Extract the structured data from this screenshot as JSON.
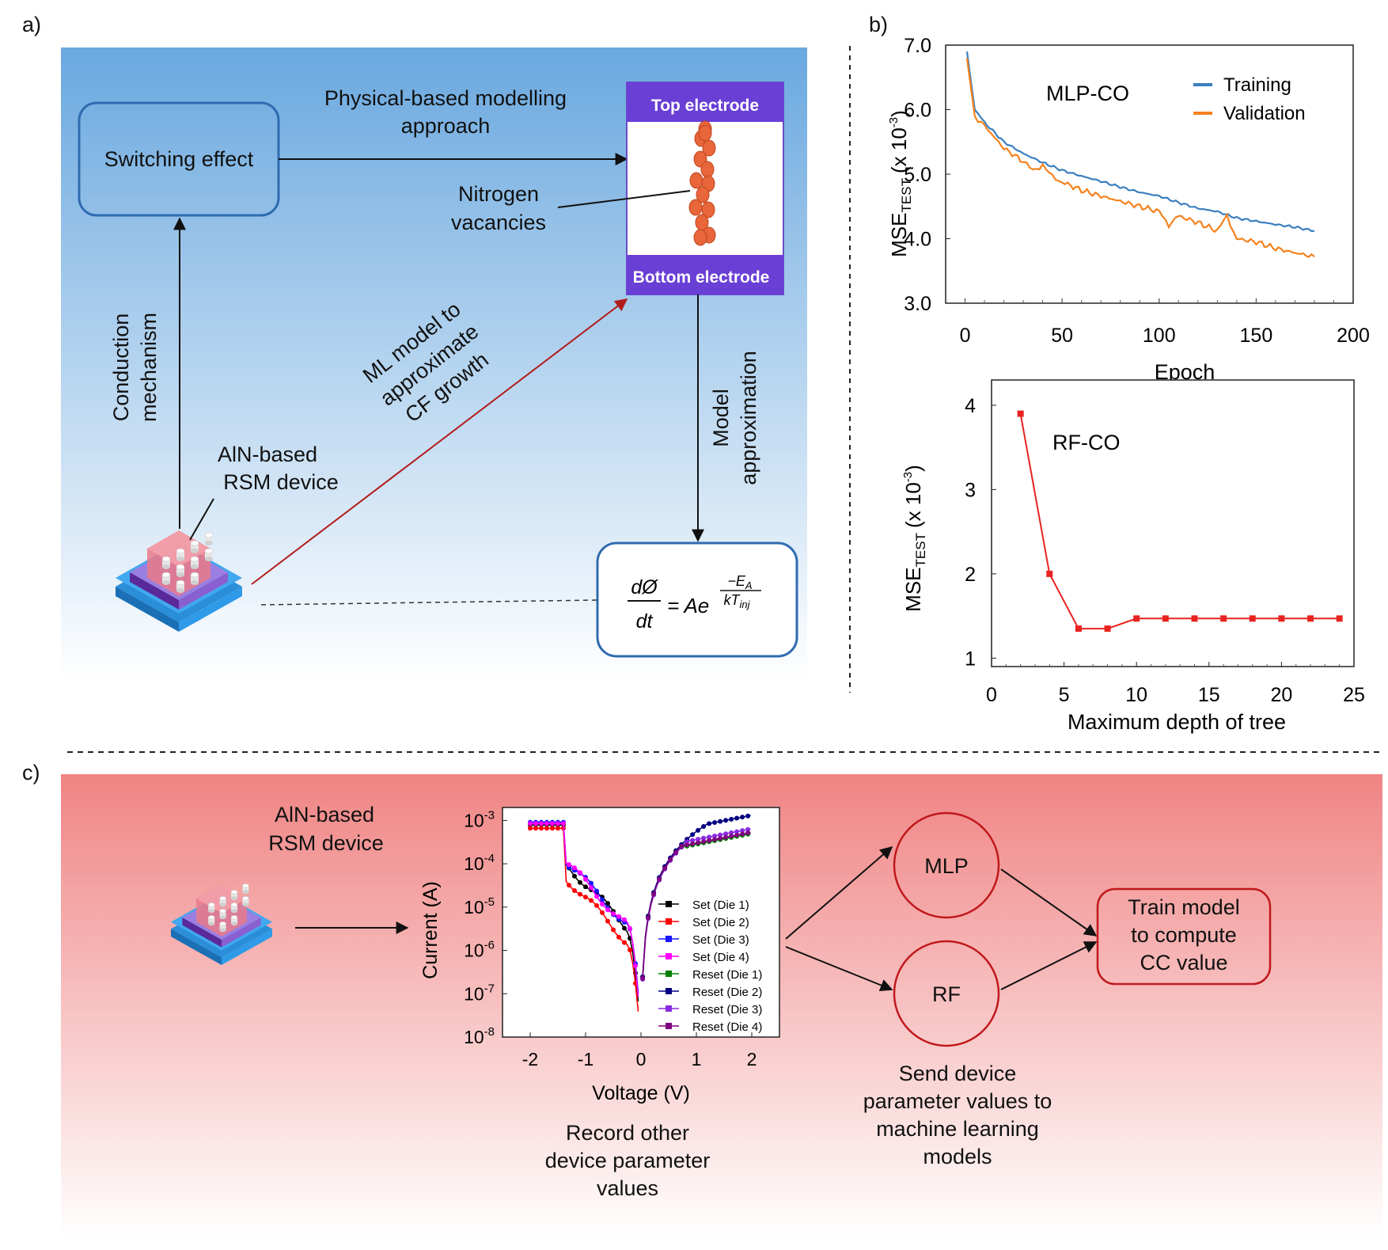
{
  "panels": {
    "a": {
      "letter": "a)",
      "switching_effect": "Switching effect",
      "physical_approach": [
        "Physical-based modelling",
        "approach"
      ],
      "top_electrode": "Top electrode",
      "bottom_electrode": "Bottom electrode",
      "nitrogen_vacancies": [
        "Nitrogen",
        "vacancies"
      ],
      "conduction_mechanism": [
        "Conduction",
        "mechanism"
      ],
      "ml_model": [
        "ML model to",
        "approximate",
        "CF growth"
      ],
      "model_approximation": [
        "Model",
        "approximation"
      ],
      "device_label": [
        "AlN-based",
        "RSM device"
      ],
      "equation": {
        "lhs_top": "dØ",
        "lhs_bottom": "dt",
        "base": "= Ae",
        "exp_top": "−E",
        "exp_top_sub": "A",
        "exp_bottom": "kT",
        "exp_bottom_sub": "inj"
      }
    },
    "b": {
      "letter": "b)",
      "ylabel_main": "MSE",
      "ylabel_sub": "TEST",
      "ylabel_units": "(x 10",
      "ylabel_exp": "-3",
      "ylabel_close": ")"
    },
    "c": {
      "letter": "c)",
      "device_label": [
        "AlN-based",
        "RSM device"
      ],
      "record_text": [
        "Record other",
        "device parameter",
        "values"
      ],
      "mlp": "MLP",
      "rf": "RF",
      "send_text": [
        "Send device",
        "parameter values to",
        "machine learning",
        "models"
      ],
      "train_text": [
        "Train model",
        "to compute",
        "CC value"
      ]
    }
  },
  "chart_data": [
    {
      "type": "line",
      "title": "MLP-CO",
      "xlabel": "Epoch",
      "ylabel": "MSE TEST (x 10-3)",
      "xlim": [
        -10,
        200
      ],
      "ylim": [
        3.0,
        7.0
      ],
      "xticks": [
        "0",
        "50",
        "100",
        "150",
        "200"
      ],
      "yticks": [
        "3.0",
        "4.0",
        "5.0",
        "6.0",
        "7.0"
      ],
      "legend_position": "top-right",
      "series": [
        {
          "name": "Training",
          "color": "#3b7fbf",
          "x": [
            1,
            5,
            10,
            20,
            30,
            40,
            50,
            60,
            70,
            80,
            90,
            100,
            110,
            120,
            130,
            140,
            150,
            160,
            170,
            180
          ],
          "y": [
            6.9,
            6.0,
            5.8,
            5.5,
            5.32,
            5.18,
            5.06,
            4.97,
            4.89,
            4.8,
            4.72,
            4.66,
            4.56,
            4.47,
            4.42,
            4.32,
            4.27,
            4.22,
            4.18,
            4.12
          ]
        },
        {
          "name": "Validation",
          "color": "#f5821f",
          "x": [
            1,
            5,
            10,
            20,
            30,
            35,
            40,
            45,
            50,
            60,
            70,
            80,
            90,
            100,
            105,
            110,
            120,
            130,
            135,
            140,
            150,
            160,
            170,
            180
          ],
          "y": [
            6.8,
            5.9,
            5.75,
            5.4,
            5.2,
            5.05,
            5.15,
            4.95,
            4.88,
            4.75,
            4.66,
            4.58,
            4.5,
            4.42,
            4.22,
            4.35,
            4.25,
            4.12,
            4.35,
            4.0,
            3.95,
            3.85,
            3.78,
            3.72
          ]
        }
      ]
    },
    {
      "type": "line",
      "title": "RF-CO",
      "xlabel": "Maximum depth of tree",
      "ylabel": "MSE TEST (x 10-3)",
      "xlim": [
        0,
        25
      ],
      "ylim": [
        1,
        4.3
      ],
      "xticks": [
        "0",
        "5",
        "10",
        "15",
        "20",
        "25"
      ],
      "yticks": [
        "1",
        "2",
        "3",
        "4"
      ],
      "series": [
        {
          "color": "#e8231f",
          "x": [
            2,
            4,
            6,
            8,
            10,
            12,
            14,
            16,
            18,
            20,
            22,
            24
          ],
          "y": [
            3.9,
            2.0,
            1.35,
            1.35,
            1.47,
            1.47,
            1.47,
            1.47,
            1.47,
            1.47,
            1.47,
            1.47
          ]
        }
      ]
    },
    {
      "type": "line",
      "xlabel": "Voltage  (V)",
      "ylabel": "Current  (A)",
      "xlim": [
        -2.5,
        2.5
      ],
      "yscale": "log",
      "ylim_exp": [
        -8,
        -2.7
      ],
      "xticks": [
        "-2",
        "-1",
        "0",
        "1",
        "2"
      ],
      "yticks": [
        "10-8",
        "10-7",
        "10-6",
        "10-5",
        "10-4",
        "10-3"
      ],
      "legend_position": "bottom-right",
      "series": [
        {
          "name": "Set (Die 1)",
          "color": "#000000",
          "marker": "square"
        },
        {
          "name": "Set (Die 2)",
          "color": "#ff0000",
          "marker": "circle"
        },
        {
          "name": "Set (Die 3)",
          "color": "#1515ff",
          "marker": "triangle-up"
        },
        {
          "name": "Set (Die 4)",
          "color": "#ff00ff",
          "marker": "triangle-down"
        },
        {
          "name": "Reset (Die 1)",
          "color": "#008000",
          "marker": "diamond"
        },
        {
          "name": "Reset (Die 2)",
          "color": "#000080",
          "marker": "triangle-left"
        },
        {
          "name": "Reset (Die 3)",
          "color": "#8a2be2",
          "marker": "triangle-right"
        },
        {
          "name": "Reset (Die 4)",
          "color": "#800080",
          "marker": "hexagon"
        }
      ]
    }
  ]
}
